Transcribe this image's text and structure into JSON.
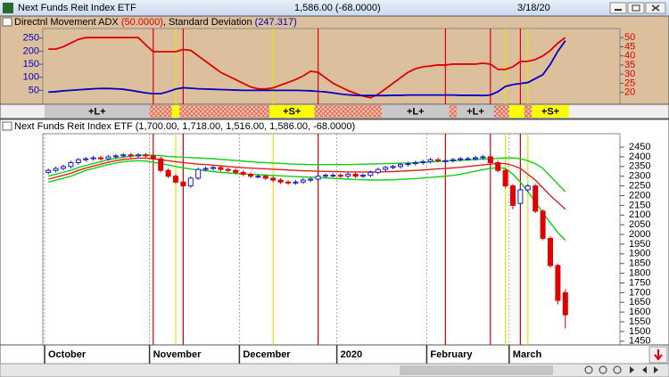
{
  "window": {
    "title": "Next Funds Reit Index ETF",
    "quote": "1,586.00 (-68.0000)",
    "date": "3/18/20"
  },
  "chart_data": [
    {
      "type": "line",
      "title_parts": [
        {
          "text": "Directnl Movement ADX ",
          "color": "#000000"
        },
        {
          "text": "(50.0000)",
          "color": "#e00000"
        },
        {
          "text": ", Standard Deviation ",
          "color": "#000000"
        },
        {
          "text": "(247.317)",
          "color": "#0000c0"
        }
      ],
      "ylim": [
        0,
        280
      ],
      "yticks": [
        250,
        200,
        150,
        100,
        50
      ],
      "y2lim": [
        14,
        54
      ],
      "y2ticks": [
        50,
        45,
        40,
        35,
        30,
        25,
        20
      ],
      "series": [
        {
          "color": "#e00000",
          "axis": "y2",
          "values": [
            43.7,
            43.7,
            45,
            47,
            49,
            50,
            50,
            50,
            50,
            50,
            50,
            50,
            50,
            46,
            42.3,
            42.3,
            42.3,
            42.3,
            43.5,
            43,
            40,
            37,
            34,
            31,
            29,
            27,
            25,
            23,
            22,
            21.9,
            22.5,
            24,
            25.5,
            27,
            29,
            31.6,
            31,
            28,
            25,
            23,
            21,
            19.5,
            18,
            17.1,
            19,
            22,
            25,
            28,
            31,
            33,
            34,
            34.5,
            35,
            35,
            35.5,
            35.5,
            35.5,
            35.5,
            36,
            35.5,
            32.6,
            32.6,
            34,
            37,
            37,
            38,
            40,
            43,
            47,
            50,
            null,
            null,
            null,
            null,
            null
          ]
        },
        {
          "color": "#0000c0",
          "values": [
            43,
            45,
            48,
            50,
            52,
            54,
            56,
            57,
            57,
            56,
            54,
            50,
            45,
            40,
            37,
            37,
            45,
            55,
            60,
            58,
            56,
            55,
            54,
            53,
            52,
            51,
            50,
            50,
            50,
            50,
            50,
            50,
            50,
            50,
            49,
            48,
            46,
            44,
            40,
            36,
            33,
            31,
            30,
            30,
            30,
            30,
            31,
            31,
            32,
            32,
            32,
            32,
            32,
            32,
            32,
            31,
            31,
            31,
            30,
            32,
            45,
            65,
            72,
            76,
            80,
            95,
            110,
            150,
            200,
            240,
            null,
            null,
            null,
            null,
            null
          ]
        }
      ],
      "bands": [
        {
          "from": 0,
          "to": 14,
          "color": "#c8c8c8",
          "label": "+L+"
        },
        {
          "from": 14,
          "to": 17,
          "color": "#f2c4b4",
          "hatch": true
        },
        {
          "from": 17,
          "to": 18,
          "color": "#ffff00"
        },
        {
          "from": 18,
          "to": 30,
          "color": "#f2c4b4",
          "hatch": true
        },
        {
          "from": 30,
          "to": 36,
          "color": "#ffff00",
          "label": "+S+"
        },
        {
          "from": 36,
          "to": 45,
          "color": "#f2c4b4",
          "hatch": true
        },
        {
          "from": 45,
          "to": 54,
          "color": "#c8c8c8",
          "label": "+L+"
        },
        {
          "from": 54,
          "to": 55,
          "color": "#f2c4b4",
          "hatch": true
        },
        {
          "from": 55,
          "to": 60,
          "color": "#c8c8c8",
          "label": "+L+"
        },
        {
          "from": 60,
          "to": 62,
          "color": "#f2c4b4",
          "hatch": true
        },
        {
          "from": 62,
          "to": 64,
          "color": "#ffff00"
        },
        {
          "from": 64,
          "to": 65,
          "color": "#f2c4b4",
          "hatch": true
        },
        {
          "from": 65,
          "to": 70,
          "color": "#ffff00",
          "label": "+S+"
        }
      ]
    },
    {
      "type": "candlestick",
      "title": "Next Funds Reit Index ETF (1,700.00, 1,718.00, 1,516.00, 1,586.00, -68.0000)",
      "categories": [
        "October",
        null,
        null,
        null,
        null,
        null,
        null,
        null,
        null,
        null,
        null,
        null,
        null,
        null,
        "November",
        null,
        null,
        null,
        null,
        null,
        null,
        null,
        null,
        null,
        null,
        null,
        "December",
        null,
        null,
        null,
        null,
        null,
        null,
        null,
        null,
        null,
        null,
        null,
        null,
        "2020",
        null,
        null,
        null,
        null,
        null,
        null,
        null,
        null,
        null,
        null,
        null,
        "February",
        null,
        null,
        null,
        null,
        null,
        null,
        null,
        null,
        null,
        null,
        "March",
        null,
        null,
        null,
        null,
        null,
        null,
        null,
        null,
        null,
        null,
        null,
        null
      ],
      "open": [
        2320,
        2330,
        2340,
        2350,
        2370,
        2385,
        2390,
        2395,
        2390,
        2400,
        2405,
        2410,
        2405,
        2410,
        2405,
        2390,
        2330,
        2300,
        2270,
        2250,
        2290,
        2335,
        2340,
        2345,
        2335,
        2330,
        2320,
        2310,
        2300,
        2300,
        2290,
        2280,
        2270,
        2265,
        2270,
        2280,
        2285,
        2300,
        2305,
        2305,
        2300,
        2310,
        2300,
        2305,
        2320,
        2335,
        2345,
        2350,
        2360,
        2365,
        2370,
        2375,
        2385,
        2380,
        2380,
        2385,
        2390,
        2390,
        2395,
        2400,
        2370,
        2330,
        2250,
        2160,
        2230,
        2250,
        2120,
        1980,
        1840,
        1700,
        null,
        null,
        null,
        null,
        null
      ],
      "high": [
        2340,
        2350,
        2360,
        2380,
        2395,
        2400,
        2405,
        2405,
        2410,
        2415,
        2420,
        2420,
        2420,
        2420,
        2415,
        2400,
        2340,
        2310,
        2280,
        2300,
        2345,
        2350,
        2355,
        2355,
        2345,
        2340,
        2330,
        2320,
        2310,
        2310,
        2300,
        2290,
        2280,
        2280,
        2290,
        2295,
        2310,
        2315,
        2315,
        2315,
        2320,
        2320,
        2315,
        2330,
        2345,
        2355,
        2360,
        2370,
        2375,
        2380,
        2385,
        2395,
        2395,
        2390,
        2395,
        2400,
        2400,
        2405,
        2410,
        2410,
        2380,
        2340,
        2260,
        2240,
        2260,
        2260,
        2130,
        1990,
        1850,
        1718,
        null,
        null,
        null,
        null,
        null
      ],
      "low": [
        2310,
        2320,
        2330,
        2340,
        2360,
        2375,
        2380,
        2380,
        2380,
        2390,
        2395,
        2395,
        2395,
        2395,
        2380,
        2320,
        2290,
        2260,
        2240,
        2240,
        2280,
        2325,
        2330,
        2325,
        2320,
        2310,
        2300,
        2290,
        2290,
        2280,
        2270,
        2260,
        2255,
        2255,
        2260,
        2270,
        2275,
        2290,
        2295,
        2290,
        2290,
        2290,
        2290,
        2295,
        2310,
        2325,
        2335,
        2340,
        2350,
        2355,
        2360,
        2365,
        2370,
        2370,
        2370,
        2375,
        2380,
        2380,
        2385,
        2360,
        2320,
        2240,
        2130,
        2150,
        2220,
        2110,
        1970,
        1830,
        1640,
        1516,
        null,
        null,
        null,
        null,
        null
      ],
      "close": [
        2330,
        2340,
        2350,
        2370,
        2385,
        2390,
        2395,
        2390,
        2400,
        2405,
        2410,
        2405,
        2410,
        2405,
        2390,
        2330,
        2300,
        2270,
        2250,
        2290,
        2335,
        2340,
        2345,
        2335,
        2330,
        2320,
        2310,
        2300,
        2300,
        2290,
        2280,
        2270,
        2265,
        2270,
        2280,
        2285,
        2300,
        2305,
        2305,
        2300,
        2310,
        2300,
        2305,
        2320,
        2335,
        2345,
        2350,
        2360,
        2365,
        2370,
        2375,
        2385,
        2380,
        2380,
        2385,
        2390,
        2390,
        2395,
        2400,
        2370,
        2330,
        2250,
        2150,
        2230,
        2250,
        2120,
        1980,
        1840,
        1660,
        1586,
        null,
        null,
        null,
        null,
        null
      ],
      "up_color": "#1c1cc8",
      "down_color": "#e00000",
      "overlays": [
        {
          "color": "#10d010",
          "values": [
            2300,
            2310,
            2320,
            2330,
            2345,
            2355,
            2365,
            2375,
            2385,
            2392,
            2398,
            2403,
            2407,
            2410,
            2408,
            2405,
            2402,
            2400,
            2398,
            2396,
            2394,
            2392,
            2390,
            2387,
            2384,
            2381,
            2378,
            2375,
            2372,
            2370,
            2368,
            2366,
            2364,
            2362,
            2361,
            2360,
            2360,
            2360,
            2360,
            2360,
            2360,
            2361,
            2362,
            2363,
            2364,
            2365,
            2366,
            2367,
            2368,
            2370,
            2372,
            2374,
            2376,
            2378,
            2380,
            2382,
            2384,
            2386,
            2388,
            2390,
            2392,
            2394,
            2395,
            2390,
            2380,
            2365,
            2340,
            2300,
            2260,
            2220,
            null,
            null,
            null,
            null,
            null
          ]
        },
        {
          "color": "#10d010",
          "values": [
            2270,
            2280,
            2290,
            2300,
            2315,
            2330,
            2340,
            2350,
            2360,
            2368,
            2374,
            2378,
            2380,
            2378,
            2372,
            2365,
            2358,
            2350,
            2343,
            2337,
            2332,
            2328,
            2324,
            2320,
            2317,
            2314,
            2312,
            2310,
            2308,
            2306,
            2304,
            2302,
            2300,
            2298,
            2296,
            2295,
            2293,
            2291,
            2289,
            2287,
            2285,
            2283,
            2282,
            2281,
            2280,
            2281,
            2282,
            2284,
            2286,
            2288,
            2291,
            2294,
            2297,
            2300,
            2304,
            2310,
            2318,
            2326,
            2334,
            2340,
            2345,
            2340,
            2310,
            2270,
            2220,
            2170,
            2110,
            2060,
            2010,
            1970,
            null,
            null,
            null,
            null,
            null
          ]
        },
        {
          "color": "#e02020",
          "values": [
            2285,
            2295,
            2305,
            2315,
            2330,
            2342,
            2352,
            2362,
            2372,
            2380,
            2386,
            2390,
            2393,
            2393,
            2390,
            2385,
            2380,
            2375,
            2370,
            2366,
            2362,
            2360,
            2357,
            2354,
            2350,
            2347,
            2344,
            2342,
            2340,
            2338,
            2336,
            2334,
            2332,
            2330,
            2328,
            2327,
            2326,
            2325,
            2324,
            2323,
            2322,
            2322,
            2322,
            2322,
            2322,
            2323,
            2324,
            2326,
            2328,
            2330,
            2332,
            2335,
            2338,
            2340,
            2343,
            2346,
            2350,
            2354,
            2358,
            2362,
            2366,
            2365,
            2355,
            2340,
            2310,
            2280,
            2240,
            2200,
            2165,
            2130,
            null,
            null,
            null,
            null,
            null
          ]
        }
      ],
      "ylim": [
        1440,
        2510
      ],
      "yticks": [
        2450,
        2400,
        2350,
        2300,
        2250,
        2200,
        2150,
        2100,
        2050,
        2000,
        1950,
        1900,
        1850,
        1800,
        1750,
        1700,
        1650,
        1600,
        1550,
        1500,
        1450
      ],
      "signal_lines": [
        {
          "index": 14,
          "color": "#e00000"
        },
        {
          "index": 18,
          "color": "#e00000"
        },
        {
          "index": 36,
          "color": "#e00000"
        },
        {
          "index": 53,
          "color": "#e00000"
        },
        {
          "index": 59,
          "color": "#e00000"
        },
        {
          "index": 63,
          "color": "#e00000"
        },
        {
          "index": 17,
          "color": "#f0e000"
        },
        {
          "index": 30,
          "color": "#f0e000"
        },
        {
          "index": 61,
          "color": "#f0e000"
        },
        {
          "index": 64,
          "color": "#f0e000"
        }
      ]
    }
  ]
}
